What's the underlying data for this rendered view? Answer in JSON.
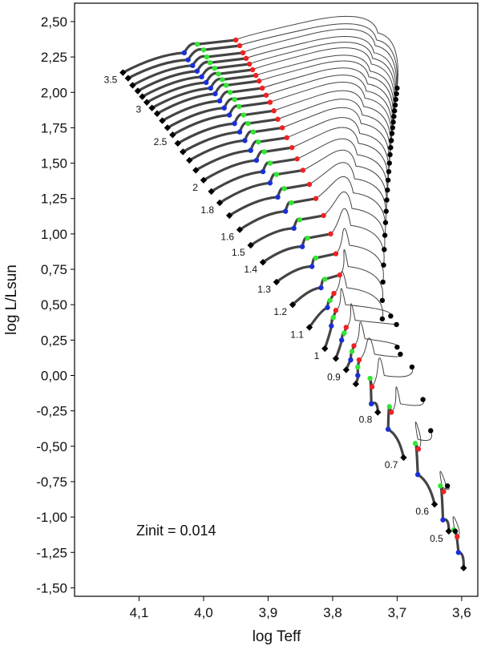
{
  "chart_data": {
    "type": "line",
    "title": "",
    "xlabel": "log Teff",
    "ylabel": "log L/Lsun",
    "xlim": [
      4.2,
      3.575
    ],
    "ylim": [
      -1.56,
      2.63
    ],
    "x_reversed": true,
    "x_ticks": [
      "4,1",
      "4,0",
      "3,9",
      "3,8",
      "3,7",
      "3,6"
    ],
    "x_tick_values": [
      4.1,
      4.0,
      3.9,
      3.8,
      3.7,
      3.6
    ],
    "y_ticks": [
      "2,50",
      "2,25",
      "2,00",
      "1,75",
      "1,50",
      "1,25",
      "1,00",
      "0,75",
      "0,50",
      "0,25",
      "0,00",
      "-0,25",
      "-0,50",
      "-0,75",
      "-1,00",
      "-1,25",
      "-1,50"
    ],
    "y_tick_values": [
      2.5,
      2.25,
      2.0,
      1.75,
      1.5,
      1.25,
      1.0,
      0.75,
      0.5,
      0.25,
      0.0,
      -0.25,
      -0.5,
      -0.75,
      -1.0,
      -1.25,
      -1.5
    ],
    "annotation": "Zinit = 0.014",
    "colors": {
      "track_ms": "#444444",
      "track_post": "#444444",
      "zams_marker": "#000000",
      "blue_point": "#1a2fd6",
      "green_point": "#33e633",
      "red_point": "#ee2222",
      "end_point": "#000000"
    },
    "tracks": [
      {
        "mass": 3.5,
        "label": "3.5",
        "zams": [
          4.125,
          2.14
        ],
        "blue": [
          4.03,
          2.28
        ],
        "green": [
          4.01,
          2.34
        ],
        "red": [
          3.95,
          2.37
        ],
        "end": [
          3.7,
          2.03
        ],
        "peak": [
          3.73,
          2.42
        ]
      },
      {
        "mass": 3.4,
        "label": "",
        "zams": [
          4.117,
          2.1
        ],
        "blue": [
          4.024,
          2.23
        ],
        "green": [
          4.0,
          2.3
        ],
        "red": [
          3.944,
          2.33
        ],
        "end": [
          3.701,
          1.99
        ],
        "peak": [
          3.732,
          2.37
        ]
      },
      {
        "mass": 3.3,
        "label": "",
        "zams": [
          4.11,
          2.05
        ],
        "blue": [
          4.017,
          2.19
        ],
        "green": [
          3.995,
          2.25
        ],
        "red": [
          3.939,
          2.28
        ],
        "end": [
          3.702,
          1.95
        ],
        "peak": [
          3.734,
          2.33
        ]
      },
      {
        "mass": 3.2,
        "label": "",
        "zams": [
          4.102,
          2.01
        ],
        "blue": [
          4.01,
          2.15
        ],
        "green": [
          3.99,
          2.21
        ],
        "red": [
          3.934,
          2.24
        ],
        "end": [
          3.703,
          1.91
        ],
        "peak": [
          3.736,
          2.28
        ]
      },
      {
        "mass": 3.1,
        "label": "",
        "zams": [
          4.095,
          1.97
        ],
        "blue": [
          4.003,
          2.11
        ],
        "green": [
          3.983,
          2.17
        ],
        "red": [
          3.929,
          2.2
        ],
        "end": [
          3.704,
          1.87
        ],
        "peak": [
          3.738,
          2.24
        ]
      },
      {
        "mass": 3.0,
        "label": "3",
        "zams": [
          4.088,
          1.93
        ],
        "blue": [
          3.996,
          2.07
        ],
        "green": [
          3.977,
          2.13
        ],
        "red": [
          3.924,
          2.16
        ],
        "end": [
          3.705,
          1.83
        ],
        "peak": [
          3.74,
          2.2
        ]
      },
      {
        "mass": 2.9,
        "label": "",
        "zams": [
          4.08,
          1.89
        ],
        "blue": [
          3.989,
          2.03
        ],
        "green": [
          3.971,
          2.09
        ],
        "red": [
          3.919,
          2.12
        ],
        "end": [
          3.706,
          1.79
        ],
        "peak": [
          3.742,
          2.15
        ]
      },
      {
        "mass": 2.8,
        "label": "",
        "zams": [
          4.072,
          1.85
        ],
        "blue": [
          3.982,
          1.99
        ],
        "green": [
          3.965,
          2.05
        ],
        "red": [
          3.914,
          2.08
        ],
        "end": [
          3.707,
          1.75
        ],
        "peak": [
          3.744,
          2.11
        ]
      },
      {
        "mass": 2.7,
        "label": "",
        "zams": [
          4.064,
          1.8
        ],
        "blue": [
          3.975,
          1.94
        ],
        "green": [
          3.959,
          2.0
        ],
        "red": [
          3.909,
          2.03
        ],
        "end": [
          3.708,
          1.71
        ],
        "peak": [
          3.746,
          2.06
        ]
      },
      {
        "mass": 2.6,
        "label": "",
        "zams": [
          4.056,
          1.75
        ],
        "blue": [
          3.968,
          1.89
        ],
        "green": [
          3.952,
          1.95
        ],
        "red": [
          3.903,
          1.98
        ],
        "end": [
          3.709,
          1.66
        ],
        "peak": [
          3.748,
          2.01
        ]
      },
      {
        "mass": 2.5,
        "label": "2.5",
        "zams": [
          4.048,
          1.7
        ],
        "blue": [
          3.96,
          1.84
        ],
        "green": [
          3.945,
          1.9
        ],
        "red": [
          3.897,
          1.93
        ],
        "end": [
          3.71,
          1.61
        ],
        "peak": [
          3.75,
          1.96
        ]
      },
      {
        "mass": 2.4,
        "label": "",
        "zams": [
          4.04,
          1.64
        ],
        "blue": [
          3.952,
          1.78
        ],
        "green": [
          3.938,
          1.84
        ],
        "red": [
          3.891,
          1.87
        ],
        "end": [
          3.711,
          1.56
        ],
        "peak": [
          3.752,
          1.9
        ]
      },
      {
        "mass": 2.3,
        "label": "",
        "zams": [
          4.032,
          1.58
        ],
        "blue": [
          3.944,
          1.72
        ],
        "green": [
          3.931,
          1.78
        ],
        "red": [
          3.885,
          1.81
        ],
        "end": [
          3.712,
          1.5
        ],
        "peak": [
          3.754,
          1.84
        ]
      },
      {
        "mass": 2.2,
        "label": "",
        "zams": [
          4.022,
          1.52
        ],
        "blue": [
          3.936,
          1.66
        ],
        "green": [
          3.923,
          1.72
        ],
        "red": [
          3.878,
          1.75
        ],
        "end": [
          3.713,
          1.44
        ],
        "peak": [
          3.756,
          1.78
        ]
      },
      {
        "mass": 2.1,
        "label": "",
        "zams": [
          4.012,
          1.45
        ],
        "blue": [
          3.927,
          1.59
        ],
        "green": [
          3.915,
          1.65
        ],
        "red": [
          3.871,
          1.68
        ],
        "end": [
          3.714,
          1.38
        ],
        "peak": [
          3.758,
          1.71
        ]
      },
      {
        "mass": 2.0,
        "label": "2",
        "zams": [
          4.0,
          1.38
        ],
        "blue": [
          3.918,
          1.52
        ],
        "green": [
          3.906,
          1.58
        ],
        "red": [
          3.863,
          1.61
        ],
        "end": [
          3.715,
          1.31
        ],
        "peak": [
          3.76,
          1.64
        ]
      },
      {
        "mass": 1.9,
        "label": "",
        "zams": [
          3.988,
          1.3
        ],
        "blue": [
          3.908,
          1.44
        ],
        "green": [
          3.897,
          1.5
        ],
        "red": [
          3.855,
          1.53
        ],
        "end": [
          3.716,
          1.24
        ],
        "peak": [
          3.762,
          1.56
        ]
      },
      {
        "mass": 1.8,
        "label": "1.8",
        "zams": [
          3.975,
          1.22
        ],
        "blue": [
          3.897,
          1.36
        ],
        "green": [
          3.887,
          1.42
        ],
        "red": [
          3.846,
          1.45
        ],
        "end": [
          3.717,
          1.16
        ],
        "peak": [
          3.764,
          1.48
        ]
      },
      {
        "mass": 1.7,
        "label": "",
        "zams": [
          3.96,
          1.13
        ],
        "blue": [
          3.885,
          1.26
        ],
        "green": [
          3.875,
          1.32
        ],
        "red": [
          3.836,
          1.35
        ],
        "end": [
          3.718,
          1.08
        ],
        "peak": [
          3.766,
          1.39
        ]
      },
      {
        "mass": 1.6,
        "label": "1.6",
        "zams": [
          3.944,
          1.03
        ],
        "blue": [
          3.873,
          1.16
        ],
        "green": [
          3.864,
          1.22
        ],
        "red": [
          3.826,
          1.25
        ],
        "end": [
          3.719,
          0.99
        ],
        "peak": [
          3.768,
          1.29
        ]
      },
      {
        "mass": 1.5,
        "label": "1.5",
        "zams": [
          3.927,
          0.92
        ],
        "blue": [
          3.86,
          1.04
        ],
        "green": [
          3.851,
          1.1
        ],
        "red": [
          3.814,
          1.13
        ],
        "end": [
          3.72,
          0.89
        ],
        "peak": [
          3.77,
          1.18
        ]
      },
      {
        "mass": 1.4,
        "label": "1.4",
        "zams": [
          3.908,
          0.8
        ],
        "blue": [
          3.847,
          0.91
        ],
        "green": [
          3.839,
          0.97
        ],
        "red": [
          3.803,
          1.0
        ],
        "end": [
          3.721,
          0.78
        ],
        "peak": [
          3.772,
          1.06
        ]
      },
      {
        "mass": 1.3,
        "label": "1.3",
        "zams": [
          3.887,
          0.66
        ],
        "blue": [
          3.832,
          0.77
        ],
        "green": [
          3.826,
          0.83
        ],
        "red": [
          3.795,
          0.86
        ],
        "end": [
          3.722,
          0.66
        ],
        "peak": [
          3.774,
          0.92
        ]
      },
      {
        "mass": 1.2,
        "label": "1.2",
        "zams": [
          3.862,
          0.5
        ],
        "blue": [
          3.818,
          0.62
        ],
        "green": [
          3.812,
          0.68
        ],
        "red": [
          3.789,
          0.71
        ],
        "end": [
          3.723,
          0.53
        ],
        "peak": [
          3.776,
          0.77
        ]
      },
      {
        "mass": 1.1,
        "label": "1.1",
        "zams": [
          3.836,
          0.34
        ],
        "blue": [
          3.808,
          0.48
        ],
        "green": [
          3.804,
          0.53
        ],
        "red": [
          3.798,
          0.58
        ],
        "end": [
          3.723,
          0.4
        ],
        "peak": [
          3.778,
          0.62
        ]
      },
      {
        "mass": 1.0,
        "label": "1",
        "zams": [
          3.812,
          0.19
        ],
        "blue": [
          3.802,
          0.35
        ],
        "green": [
          3.799,
          0.41
        ],
        "red": [
          3.795,
          0.46
        ],
        "end": [
          3.71,
          0.42
        ],
        "peak": [
          3.78,
          0.5
        ]
      },
      {
        "mass": 0.95,
        "label": "",
        "zams": [
          3.795,
          0.12
        ],
        "blue": [
          3.786,
          0.25
        ],
        "green": [
          3.782,
          0.3
        ],
        "red": [
          3.779,
          0.34
        ],
        "end": [
          3.701,
          0.36
        ],
        "peak": [
          3.765,
          0.39
        ]
      },
      {
        "mass": 0.9,
        "label": "0.9",
        "zams": [
          3.779,
          0.04
        ],
        "blue": [
          3.772,
          0.11
        ],
        "green": [
          3.77,
          0.17
        ],
        "red": [
          3.767,
          0.21
        ],
        "end": [
          3.7,
          0.2
        ],
        "peak": [
          3.75,
          0.26
        ]
      },
      {
        "mass": 0.85,
        "label": "",
        "zams": [
          3.764,
          -0.06
        ],
        "blue": [
          3.761,
          0.0
        ],
        "green": [
          3.761,
          0.06
        ],
        "red": [
          3.759,
          0.11
        ],
        "end": [
          3.695,
          0.15
        ],
        "peak": [
          3.735,
          0.15
        ]
      },
      {
        "mass": 0.8,
        "label": "0.8",
        "zams": [
          3.73,
          -0.26
        ],
        "blue": [
          3.74,
          -0.2
        ],
        "green": [
          3.742,
          -0.02
        ],
        "red": [
          3.739,
          -0.08
        ],
        "end": [
          3.677,
          0.06
        ],
        "peak": [
          3.72,
          0.0
        ]
      },
      {
        "mass": 0.7,
        "label": "0.7",
        "zams": [
          3.69,
          -0.58
        ],
        "blue": [
          3.714,
          -0.38
        ],
        "green": [
          3.712,
          -0.22
        ],
        "red": [
          3.709,
          -0.26
        ],
        "end": [
          3.66,
          -0.17
        ],
        "peak": [
          3.695,
          -0.2
        ]
      },
      {
        "mass": 0.6,
        "label": "0.6",
        "zams": [
          3.642,
          -0.91
        ],
        "blue": [
          3.668,
          -0.7
        ],
        "green": [
          3.672,
          -0.48
        ],
        "red": [
          3.667,
          -0.52
        ],
        "end": [
          3.648,
          -0.39
        ],
        "peak": [
          3.668,
          -0.45
        ]
      },
      {
        "mass": 0.5,
        "label": "0.5",
        "zams": [
          3.62,
          -1.1
        ],
        "blue": [
          3.629,
          -1.02
        ],
        "green": [
          3.633,
          -0.78
        ],
        "red": [
          3.628,
          -0.82
        ],
        "end": [
          3.622,
          -0.78
        ],
        "peak": [
          3.63,
          -0.79
        ]
      },
      {
        "mass": 0.45,
        "label": "",
        "zams": [
          3.597,
          -1.36
        ],
        "blue": [
          3.605,
          -1.25
        ],
        "green": [
          3.612,
          -1.09
        ],
        "red": [
          3.607,
          -1.14
        ],
        "end": [
          3.61,
          -1.1
        ],
        "peak": [
          3.61,
          -1.11
        ]
      }
    ]
  }
}
